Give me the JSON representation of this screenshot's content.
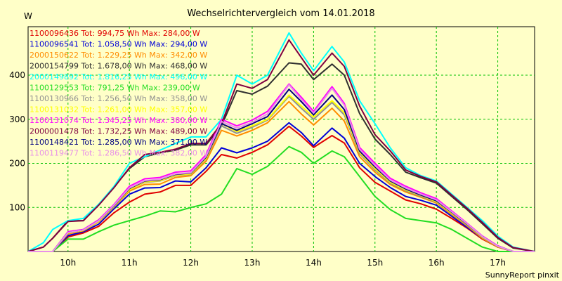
{
  "chart_data": {
    "type": "line",
    "title": "Wechselrichtervergleich vom 14.01.2018",
    "ylabel": "W",
    "xlabel": "",
    "footer": "SunnyReport pinxit",
    "x_ticks": [
      "10h",
      "11h",
      "12h",
      "13h",
      "14h",
      "15h",
      "16h",
      "17h"
    ],
    "y_ticks": [
      100,
      200,
      300,
      400
    ],
    "xlim": [
      9.35,
      17.6
    ],
    "ylim": [
      0,
      510
    ],
    "grid": true,
    "legend_position": "top-left",
    "x": [
      9.35,
      9.6,
      9.75,
      10.0,
      10.25,
      10.5,
      10.75,
      11.0,
      11.25,
      11.5,
      11.75,
      12.0,
      12.25,
      12.5,
      12.75,
      13.0,
      13.25,
      13.6,
      13.8,
      14.0,
      14.3,
      14.5,
      14.75,
      15.0,
      15.25,
      15.5,
      15.75,
      16.0,
      16.25,
      16.5,
      16.75,
      17.0,
      17.25,
      17.6
    ],
    "series": [
      {
        "name": "1100096436 Tot: 994,75 Wh Max: 284,00 W",
        "color": "#e00000",
        "values": [
          0,
          0,
          0,
          33,
          42,
          57,
          88,
          112,
          130,
          135,
          150,
          150,
          182,
          220,
          212,
          225,
          242,
          284,
          262,
          236,
          263,
          246,
          190,
          157,
          137,
          117,
          108,
          96,
          75,
          53,
          28,
          10,
          0,
          0
        ]
      },
      {
        "name": "1100096541 Tot: 1.058,50 Wh Max: 294,00 W",
        "color": "#0000d8",
        "values": [
          0,
          0,
          0,
          36,
          45,
          62,
          97,
          130,
          144,
          145,
          160,
          158,
          190,
          235,
          224,
          235,
          250,
          292,
          270,
          240,
          280,
          257,
          200,
          170,
          145,
          125,
          116,
          105,
          80,
          55,
          30,
          10,
          0,
          0
        ]
      },
      {
        "name": "2000150622 Tot: 1.229,25 Wh Max: 342,00 W",
        "color": "#ff8c00",
        "values": [
          0,
          0,
          0,
          40,
          47,
          67,
          101,
          137,
          152,
          153,
          168,
          172,
          205,
          275,
          262,
          275,
          292,
          340,
          312,
          287,
          325,
          296,
          215,
          180,
          152,
          135,
          123,
          110,
          84,
          58,
          30,
          10,
          0,
          0
        ]
      },
      {
        "name": "2000154799 Tot: 1.678,00 Wh Max: 468,00 W",
        "color": "#303030",
        "values": [
          0,
          10,
          30,
          70,
          70,
          107,
          147,
          188,
          215,
          224,
          230,
          242,
          242,
          285,
          365,
          357,
          375,
          428,
          425,
          390,
          425,
          400,
          313,
          255,
          220,
          180,
          167,
          155,
          125,
          95,
          63,
          30,
          8,
          0
        ]
      },
      {
        "name": "2000149892 Tot: 1.816,25 Wh Max: 496,00 W",
        "color": "#00ffff",
        "values": [
          0,
          20,
          50,
          70,
          75,
          107,
          148,
          200,
          215,
          230,
          245,
          260,
          260,
          300,
          400,
          380,
          400,
          496,
          450,
          410,
          465,
          430,
          342,
          290,
          235,
          190,
          172,
          160,
          130,
          100,
          70,
          35,
          10,
          0
        ]
      },
      {
        "name": "1100129553 Tot: 791,25 Wh Max: 239,00 W",
        "color": "#22dd22",
        "values": [
          0,
          0,
          0,
          28,
          28,
          45,
          60,
          70,
          80,
          92,
          90,
          100,
          108,
          130,
          188,
          175,
          193,
          238,
          225,
          200,
          228,
          215,
          170,
          125,
          95,
          75,
          70,
          65,
          50,
          30,
          10,
          0,
          0,
          0
        ]
      },
      {
        "name": "1100130966 Tot: 1.256,50 Wh Max: 358,00 W",
        "color": "#909090",
        "values": [
          0,
          0,
          0,
          42,
          48,
          68,
          102,
          140,
          157,
          160,
          172,
          175,
          210,
          285,
          268,
          282,
          298,
          352,
          325,
          300,
          338,
          310,
          222,
          185,
          155,
          138,
          125,
          112,
          86,
          60,
          32,
          12,
          0,
          0
        ]
      },
      {
        "name": "1100131032 Tot: 1.261,00 Wh Max: 357,00 W",
        "color": "#ffff00",
        "values": [
          0,
          0,
          0,
          42,
          48,
          68,
          103,
          140,
          158,
          161,
          173,
          176,
          211,
          290,
          272,
          285,
          300,
          355,
          330,
          305,
          342,
          315,
          225,
          188,
          157,
          140,
          127,
          113,
          87,
          61,
          33,
          12,
          0,
          0
        ]
      },
      {
        "name": "1100131074 Tot: 1.345,25 Wh Max: 380,00 W",
        "color": "#ff00ff",
        "values": [
          0,
          0,
          0,
          45,
          50,
          72,
          107,
          148,
          165,
          168,
          180,
          183,
          220,
          300,
          285,
          298,
          318,
          380,
          350,
          318,
          374,
          336,
          236,
          200,
          166,
          148,
          133,
          120,
          92,
          64,
          35,
          13,
          0,
          0
        ]
      },
      {
        "name": "2000001478 Tot: 1.732,25 Wh Max: 489,00 W",
        "color": "#800040",
        "values": [
          0,
          10,
          30,
          68,
          70,
          105,
          145,
          190,
          220,
          225,
          232,
          245,
          245,
          290,
          380,
          370,
          390,
          480,
          440,
          400,
          450,
          420,
          330,
          265,
          228,
          185,
          170,
          158,
          128,
          98,
          66,
          32,
          9,
          0
        ]
      },
      {
        "name": "1100148421 Tot: 1.285,00 Wh Max: 371,00 W",
        "color": "#000080",
        "values": [
          0,
          0,
          0,
          43,
          49,
          70,
          104,
          143,
          160,
          163,
          175,
          178,
          214,
          290,
          275,
          290,
          306,
          368,
          340,
          310,
          355,
          322,
          228,
          192,
          160,
          142,
          128,
          115,
          89,
          62,
          34,
          12,
          0,
          0
        ]
      },
      {
        "name": "1100119477 Tot: 1.286,50 Wh Max: 382,00 W",
        "color": "#e890e8",
        "values": [
          0,
          0,
          0,
          43,
          49,
          70,
          105,
          144,
          161,
          164,
          176,
          179,
          216,
          295,
          280,
          293,
          312,
          378,
          345,
          314,
          370,
          332,
          232,
          195,
          162,
          144,
          130,
          117,
          90,
          63,
          34,
          12,
          0,
          0
        ]
      }
    ]
  }
}
